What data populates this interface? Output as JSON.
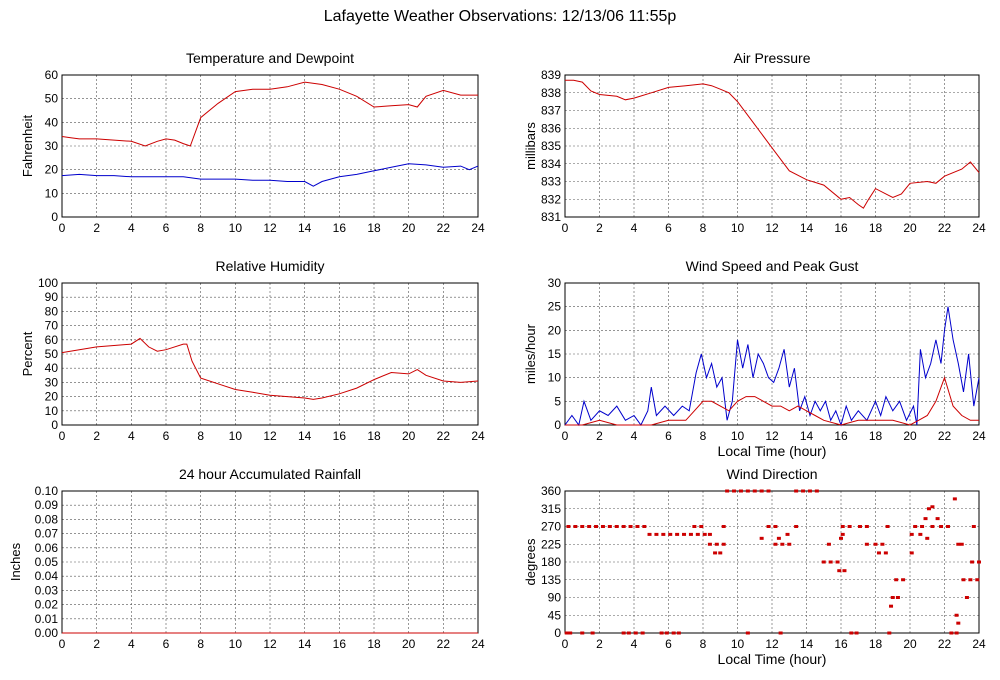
{
  "page": {
    "title": "Lafayette Weather Observations: 12/13/06 11:55p"
  },
  "chart_data": [
    {
      "id": "temp",
      "type": "line",
      "title": "Temperature and Dewpoint",
      "xlabel": "",
      "ylabel": "Fahrenheit",
      "xlim": [
        0,
        24
      ],
      "ylim": [
        0,
        60
      ],
      "xticks": [
        0,
        2,
        4,
        6,
        8,
        10,
        12,
        14,
        16,
        18,
        20,
        22,
        24
      ],
      "yticks": [
        0,
        10,
        20,
        30,
        40,
        50,
        60
      ],
      "grid": true,
      "series": [
        {
          "color": "#cc0000",
          "x": [
            0,
            0.5,
            1,
            2,
            3,
            4,
            4.8,
            5.5,
            6,
            6.5,
            7,
            7.4,
            8,
            9,
            10,
            11,
            12,
            13,
            14,
            15,
            16,
            17,
            18,
            19,
            20,
            20.5,
            21,
            22,
            23,
            24
          ],
          "y": [
            34,
            33.5,
            33,
            33,
            32.5,
            32,
            30,
            32,
            33,
            32.5,
            31,
            30,
            42,
            48,
            53,
            54,
            54,
            55,
            57,
            56,
            54,
            51,
            46.5,
            47,
            47.5,
            46.5,
            51,
            53.5,
            51.5,
            51.5
          ]
        },
        {
          "color": "#0000cc",
          "x": [
            0,
            1,
            2,
            3,
            4,
            5,
            6,
            7,
            8,
            9,
            10,
            11,
            12,
            13,
            14,
            14.5,
            15,
            16,
            17,
            18,
            19,
            20,
            21,
            22,
            23,
            23.5,
            24
          ],
          "y": [
            17.5,
            18,
            17.5,
            17.5,
            17,
            17,
            17,
            17,
            16,
            16,
            16,
            15.5,
            15.5,
            15,
            15,
            13,
            15,
            17,
            18,
            19.5,
            21,
            22.5,
            22,
            21,
            21.5,
            20,
            21.5
          ]
        }
      ]
    },
    {
      "id": "pressure",
      "type": "line",
      "title": "Air Pressure",
      "xlabel": "",
      "ylabel": "millibars",
      "xlim": [
        0,
        24
      ],
      "ylim": [
        831,
        839
      ],
      "xticks": [
        0,
        2,
        4,
        6,
        8,
        10,
        12,
        14,
        16,
        18,
        20,
        22,
        24
      ],
      "yticks": [
        831,
        832,
        833,
        834,
        835,
        836,
        837,
        838,
        839
      ],
      "grid": true,
      "series": [
        {
          "color": "#cc0000",
          "x": [
            0,
            0.5,
            1,
            1.5,
            2,
            3,
            3.5,
            4,
            5,
            6,
            7,
            8,
            8.5,
            9,
            9.5,
            10,
            11,
            12,
            13,
            14,
            15,
            16,
            16.5,
            17,
            17.3,
            17.6,
            18,
            19,
            19.5,
            20,
            21,
            21.5,
            22,
            23,
            23.5,
            24
          ],
          "y": [
            838.7,
            838.7,
            838.6,
            838.1,
            837.9,
            837.8,
            837.6,
            837.7,
            838.0,
            838.3,
            838.4,
            838.5,
            838.4,
            838.2,
            838.0,
            837.5,
            836.2,
            834.9,
            833.6,
            833.1,
            832.8,
            832.0,
            832.1,
            831.7,
            831.5,
            832.0,
            832.6,
            832.1,
            832.3,
            832.9,
            833.0,
            832.9,
            833.3,
            833.7,
            834.1,
            833.5
          ]
        }
      ]
    },
    {
      "id": "humidity",
      "type": "line",
      "title": "Relative Humidity",
      "xlabel": "",
      "ylabel": "Percent",
      "xlim": [
        0,
        24
      ],
      "ylim": [
        0,
        100
      ],
      "xticks": [
        0,
        2,
        4,
        6,
        8,
        10,
        12,
        14,
        16,
        18,
        20,
        22,
        24
      ],
      "yticks": [
        0,
        10,
        20,
        30,
        40,
        50,
        60,
        70,
        80,
        90,
        100
      ],
      "grid": true,
      "series": [
        {
          "color": "#cc0000",
          "x": [
            0,
            1,
            2,
            3,
            4,
            4.5,
            5,
            5.5,
            6,
            7,
            7.2,
            7.5,
            8,
            9,
            10,
            11,
            12,
            13,
            14,
            14.5,
            15,
            16,
            17,
            18,
            19,
            20,
            20.5,
            21,
            22,
            23,
            24
          ],
          "y": [
            51,
            53,
            55,
            56,
            57,
            61,
            55,
            52,
            53,
            57,
            57,
            45,
            33,
            29,
            25,
            23,
            21,
            20,
            19,
            18,
            19,
            22,
            26,
            32,
            37,
            36,
            39,
            35,
            31,
            30,
            31
          ]
        }
      ]
    },
    {
      "id": "wind",
      "type": "line",
      "title": "Wind Speed and Peak Gust",
      "xlabel": "Local Time (hour)",
      "ylabel": "miles/hour",
      "xlim": [
        0,
        24
      ],
      "ylim": [
        0,
        30
      ],
      "xticks": [
        0,
        2,
        4,
        6,
        8,
        10,
        12,
        14,
        16,
        18,
        20,
        22,
        24
      ],
      "yticks": [
        0,
        5,
        10,
        15,
        20,
        25,
        30
      ],
      "grid": true,
      "series": [
        {
          "color": "#0000cc",
          "x": [
            0,
            0.4,
            0.8,
            1.1,
            1.5,
            2,
            2.5,
            3,
            3.5,
            4,
            4.4,
            4.8,
            5,
            5.3,
            5.8,
            6.3,
            6.8,
            7.2,
            7.6,
            7.9,
            8.2,
            8.5,
            8.8,
            9.1,
            9.4,
            9.7,
            10,
            10.3,
            10.6,
            10.9,
            11.2,
            11.5,
            11.8,
            12.1,
            12.4,
            12.7,
            13,
            13.3,
            13.6,
            13.9,
            14.2,
            14.5,
            14.8,
            15.1,
            15.4,
            15.7,
            16,
            16.3,
            16.6,
            17,
            17.5,
            18,
            18.3,
            18.6,
            19,
            19.4,
            19.8,
            20.2,
            20.4,
            20.6,
            20.9,
            21.2,
            21.5,
            21.8,
            22,
            22.2,
            22.5,
            22.8,
            23.1,
            23.4,
            23.7,
            24
          ],
          "y": [
            0,
            2,
            0,
            5,
            1,
            3,
            2,
            4,
            1,
            2,
            0,
            3,
            8,
            2,
            4,
            2,
            4,
            3,
            11,
            15,
            10,
            13,
            8,
            10,
            1,
            5,
            18,
            12,
            17,
            10,
            15,
            13,
            10,
            9,
            12,
            16,
            8,
            12,
            3,
            6,
            2,
            5,
            3,
            5,
            1,
            3,
            0,
            4,
            1,
            3,
            1,
            5,
            2,
            6,
            3,
            5,
            1,
            4,
            0,
            16,
            10,
            13,
            18,
            13,
            20,
            25,
            18,
            13,
            7,
            15,
            4,
            10
          ]
        },
        {
          "color": "#cc0000",
          "x": [
            0,
            1,
            2,
            3,
            4,
            5,
            6,
            7,
            7.5,
            8,
            8.5,
            9,
            9.5,
            10,
            10.5,
            11,
            11.5,
            12,
            12.5,
            13,
            13.5,
            14,
            14.5,
            15,
            16,
            17,
            18,
            19,
            20,
            20.5,
            21,
            21.5,
            22,
            22.5,
            23,
            23.5,
            24
          ],
          "y": [
            0,
            0,
            1,
            0,
            0,
            0,
            1,
            1,
            3,
            5,
            5,
            4,
            3,
            5,
            6,
            6,
            5,
            4,
            4,
            3,
            4,
            3,
            2,
            1,
            0,
            1,
            1,
            1,
            0,
            1,
            2,
            5,
            10,
            4,
            2,
            1,
            1
          ]
        }
      ]
    },
    {
      "id": "rain",
      "type": "line",
      "title": "24 hour Accumulated Rainfall",
      "xlabel": "",
      "ylabel": "Inches",
      "xlim": [
        0,
        24
      ],
      "ylim": [
        0,
        0.1
      ],
      "xticks": [
        0,
        2,
        4,
        6,
        8,
        10,
        12,
        14,
        16,
        18,
        20,
        22,
        24
      ],
      "yticks": [
        "0.00",
        "0.01",
        "0.02",
        "0.03",
        "0.04",
        "0.05",
        "0.06",
        "0.07",
        "0.08",
        "0.09",
        "0.10"
      ],
      "grid": true,
      "series": [
        {
          "color": "#cc0000",
          "x": [
            0,
            24
          ],
          "y": [
            0,
            0
          ]
        }
      ]
    },
    {
      "id": "direction",
      "type": "scatter",
      "title": "Wind Direction",
      "xlabel": "Local Time (hour)",
      "ylabel": "degrees",
      "xlim": [
        0,
        24
      ],
      "ylim": [
        0,
        360
      ],
      "xticks": [
        0,
        2,
        4,
        6,
        8,
        10,
        12,
        14,
        16,
        18,
        20,
        22,
        24
      ],
      "yticks": [
        0,
        45,
        90,
        135,
        180,
        225,
        270,
        315,
        360
      ],
      "grid": true,
      "series": [
        {
          "color": "#cc0000",
          "x": [
            0.1,
            0.3,
            1.0,
            1.6,
            3.4,
            3.7,
            4.1,
            4.5,
            5.6,
            5.9,
            6.3,
            6.6,
            10.6,
            12.5,
            16.6,
            16.9,
            18.8,
            22.4,
            22.7,
            0.2,
            0.6,
            1.0,
            1.4,
            1.8,
            2.2,
            2.6,
            3.0,
            3.4,
            3.8,
            4.2,
            4.6,
            7.5,
            7.9,
            9.2,
            11.8,
            12.2,
            13.4,
            16.1,
            16.5,
            17.1,
            17.5,
            18.7,
            20.3,
            20.7,
            21.3,
            21.8,
            22.2,
            23.7,
            4.9,
            5.3,
            5.7,
            6.1,
            6.5,
            6.9,
            7.3,
            7.7,
            8.1,
            8.4,
            12.9,
            16.1,
            20.1,
            20.6,
            8.4,
            8.8,
            9.2,
            12.2,
            12.6,
            13.0,
            15.3,
            17.5,
            18.0,
            18.4,
            22.8,
            23.0,
            8.7,
            9.0,
            18.2,
            18.6,
            20.1,
            9.4,
            9.8,
            10.2,
            10.6,
            11.0,
            11.4,
            11.8,
            13.4,
            13.8,
            14.2,
            14.6,
            11.4,
            12.4,
            16.0,
            21.0,
            15.0,
            15.4,
            15.8,
            23.6,
            24.0,
            15.9,
            16.2,
            19.2,
            19.6,
            23.1,
            23.5,
            23.9,
            19.0,
            19.3,
            23.3,
            18.9,
            20.9,
            21.1,
            21.3,
            21.6,
            22.6,
            22.7,
            22.8
          ],
          "y": [
            0,
            0,
            0,
            0,
            0,
            0,
            0,
            0,
            0,
            0,
            0,
            0,
            0,
            0,
            0,
            0,
            0,
            0,
            0,
            270,
            270,
            270,
            270,
            270,
            270,
            270,
            270,
            270,
            270,
            270,
            270,
            270,
            270,
            270,
            270,
            270,
            270,
            270,
            270,
            270,
            270,
            270,
            270,
            270,
            270,
            270,
            270,
            270,
            250,
            250,
            250,
            250,
            250,
            250,
            250,
            250,
            250,
            250,
            250,
            250,
            250,
            250,
            225,
            225,
            225,
            225,
            225,
            225,
            225,
            225,
            225,
            225,
            225,
            225,
            203,
            203,
            203,
            203,
            203,
            360,
            360,
            360,
            360,
            360,
            360,
            360,
            360,
            360,
            360,
            360,
            240,
            240,
            240,
            240,
            180,
            180,
            180,
            180,
            180,
            158,
            158,
            135,
            135,
            135,
            135,
            135,
            90,
            90,
            90,
            68,
            290,
            315,
            320,
            290,
            340,
            45,
            25
          ]
        }
      ]
    }
  ]
}
